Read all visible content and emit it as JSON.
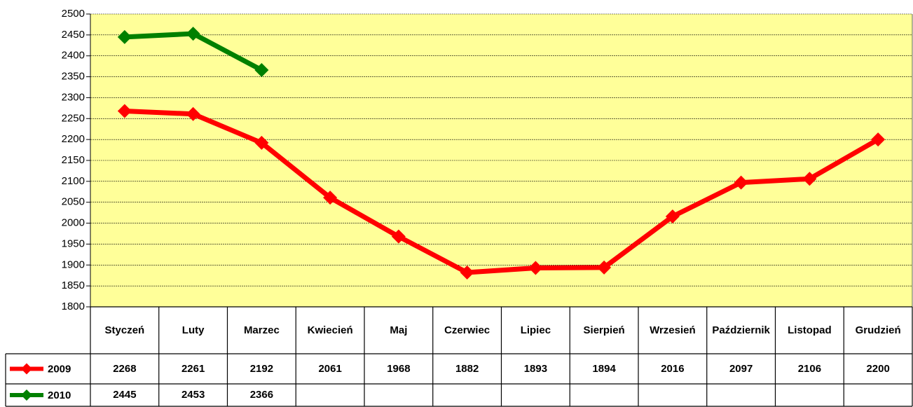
{
  "chart_data": {
    "type": "line",
    "categories": [
      "Styczeń",
      "Luty",
      "Marzec",
      "Kwiecień",
      "Maj",
      "Czerwiec",
      "Lipiec",
      "Sierpień",
      "Wrzesień",
      "Październik",
      "Listopad",
      "Grudzień"
    ],
    "series": [
      {
        "name": "2009",
        "color": "#ff0000",
        "values": [
          2268,
          2261,
          2192,
          2061,
          1968,
          1882,
          1893,
          1894,
          2016,
          2097,
          2106,
          2200
        ]
      },
      {
        "name": "2010",
        "color": "#008000",
        "values": [
          2445,
          2453,
          2366,
          null,
          null,
          null,
          null,
          null,
          null,
          null,
          null,
          null
        ]
      }
    ],
    "ylim": [
      1800,
      2500
    ],
    "yticks": [
      1800,
      1850,
      1900,
      1950,
      2000,
      2050,
      2100,
      2150,
      2200,
      2250,
      2300,
      2350,
      2400,
      2450,
      2500
    ],
    "grid": true,
    "background": "#ffff99",
    "data_table": true
  }
}
